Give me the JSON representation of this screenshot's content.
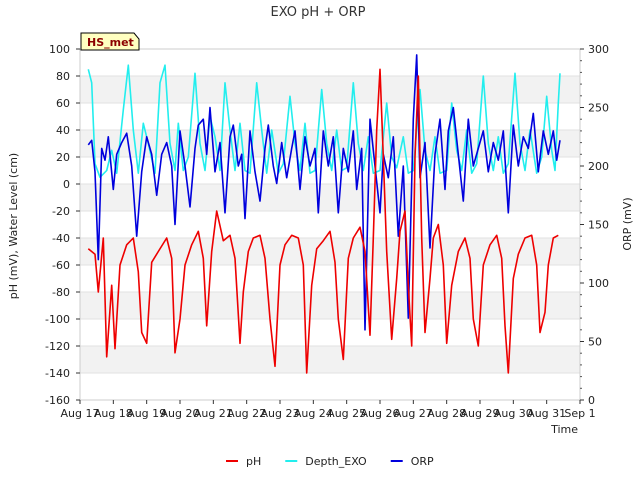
{
  "chart_data": {
    "type": "line",
    "title": "EXO pH + ORP",
    "station_label": "HS_met",
    "xlabel": "Time",
    "ylabel_left": "pH (mV), Water Level (cm)",
    "ylabel_right": "ORP (mV)",
    "x_ticks": [
      "Aug 17",
      "Aug 18",
      "Aug 19",
      "Aug 20",
      "Aug 21",
      "Aug 22",
      "Aug 23",
      "Aug 24",
      "Aug 25",
      "Aug 26",
      "Aug 27",
      "Aug 28",
      "Aug 29",
      "Aug 30",
      "Aug 31",
      "Sep 1"
    ],
    "xlim": [
      0,
      15
    ],
    "ylim_left": [
      -160,
      100
    ],
    "y_ticks_left": [
      "-160",
      "-140",
      "-120",
      "-100",
      "-80",
      "-60",
      "-40",
      "-20",
      "0",
      "20",
      "40",
      "60",
      "80",
      "100"
    ],
    "ylim_right": [
      0,
      300
    ],
    "y_ticks_right": [
      "0",
      "50",
      "100",
      "150",
      "200",
      "250",
      "300"
    ],
    "grid": "horizontal bands",
    "legend_position": "bottom",
    "series": [
      {
        "name": "pH",
        "axis": "left",
        "color": "#ee0000",
        "points": [
          [
            0.25,
            -48
          ],
          [
            0.45,
            -52
          ],
          [
            0.55,
            -80
          ],
          [
            0.7,
            -40
          ],
          [
            0.8,
            -128
          ],
          [
            0.95,
            -75
          ],
          [
            1.05,
            -122
          ],
          [
            1.2,
            -60
          ],
          [
            1.4,
            -45
          ],
          [
            1.6,
            -40
          ],
          [
            1.75,
            -65
          ],
          [
            1.85,
            -110
          ],
          [
            2.0,
            -118
          ],
          [
            2.15,
            -58
          ],
          [
            2.35,
            -50
          ],
          [
            2.6,
            -40
          ],
          [
            2.75,
            -55
          ],
          [
            2.85,
            -125
          ],
          [
            3.0,
            -100
          ],
          [
            3.15,
            -60
          ],
          [
            3.35,
            -45
          ],
          [
            3.55,
            -35
          ],
          [
            3.7,
            -55
          ],
          [
            3.8,
            -105
          ],
          [
            3.95,
            -50
          ],
          [
            4.1,
            -20
          ],
          [
            4.3,
            -42
          ],
          [
            4.5,
            -38
          ],
          [
            4.65,
            -55
          ],
          [
            4.8,
            -118
          ],
          [
            4.9,
            -80
          ],
          [
            5.05,
            -50
          ],
          [
            5.2,
            -40
          ],
          [
            5.4,
            -38
          ],
          [
            5.55,
            -55
          ],
          [
            5.7,
            -100
          ],
          [
            5.85,
            -135
          ],
          [
            6.0,
            -60
          ],
          [
            6.15,
            -45
          ],
          [
            6.35,
            -38
          ],
          [
            6.55,
            -40
          ],
          [
            6.7,
            -60
          ],
          [
            6.8,
            -140
          ],
          [
            6.95,
            -75
          ],
          [
            7.1,
            -48
          ],
          [
            7.3,
            -42
          ],
          [
            7.5,
            -35
          ],
          [
            7.65,
            -58
          ],
          [
            7.75,
            -100
          ],
          [
            7.9,
            -130
          ],
          [
            8.05,
            -55
          ],
          [
            8.2,
            -40
          ],
          [
            8.4,
            -32
          ],
          [
            8.55,
            -50
          ],
          [
            8.7,
            -112
          ],
          [
            8.8,
            -40
          ],
          [
            8.9,
            40
          ],
          [
            9.0,
            85
          ],
          [
            9.1,
            20
          ],
          [
            9.2,
            -50
          ],
          [
            9.35,
            -115
          ],
          [
            9.5,
            -70
          ],
          [
            9.6,
            -35
          ],
          [
            9.75,
            -20
          ],
          [
            9.85,
            -75
          ],
          [
            9.95,
            -120
          ],
          [
            10.05,
            20
          ],
          [
            10.15,
            80
          ],
          [
            10.25,
            -40
          ],
          [
            10.35,
            -110
          ],
          [
            10.5,
            -70
          ],
          [
            10.6,
            -40
          ],
          [
            10.75,
            -30
          ],
          [
            10.9,
            -60
          ],
          [
            11.0,
            -118
          ],
          [
            11.15,
            -75
          ],
          [
            11.35,
            -50
          ],
          [
            11.55,
            -40
          ],
          [
            11.7,
            -55
          ],
          [
            11.8,
            -100
          ],
          [
            11.95,
            -120
          ],
          [
            12.1,
            -60
          ],
          [
            12.3,
            -45
          ],
          [
            12.5,
            -38
          ],
          [
            12.65,
            -55
          ],
          [
            12.75,
            -105
          ],
          [
            12.85,
            -140
          ],
          [
            13.0,
            -70
          ],
          [
            13.15,
            -52
          ],
          [
            13.35,
            -40
          ],
          [
            13.55,
            -38
          ],
          [
            13.7,
            -60
          ],
          [
            13.8,
            -110
          ],
          [
            13.95,
            -95
          ],
          [
            14.05,
            -60
          ],
          [
            14.2,
            -40
          ],
          [
            14.35,
            -38
          ]
        ]
      },
      {
        "name": "Depth_EXO",
        "axis": "left",
        "color": "#22eeee",
        "points": [
          [
            0.25,
            85
          ],
          [
            0.35,
            75
          ],
          [
            0.45,
            15
          ],
          [
            0.6,
            5
          ],
          [
            0.8,
            10
          ],
          [
            0.95,
            25
          ],
          [
            1.1,
            8
          ],
          [
            1.3,
            55
          ],
          [
            1.45,
            88
          ],
          [
            1.6,
            40
          ],
          [
            1.75,
            8
          ],
          [
            1.9,
            45
          ],
          [
            2.05,
            30
          ],
          [
            2.25,
            8
          ],
          [
            2.4,
            75
          ],
          [
            2.55,
            88
          ],
          [
            2.7,
            30
          ],
          [
            2.85,
            10
          ],
          [
            2.95,
            45
          ],
          [
            3.1,
            10
          ],
          [
            3.25,
            20
          ],
          [
            3.45,
            82
          ],
          [
            3.6,
            30
          ],
          [
            3.75,
            10
          ],
          [
            3.9,
            50
          ],
          [
            4.05,
            35
          ],
          [
            4.2,
            10
          ],
          [
            4.35,
            75
          ],
          [
            4.5,
            40
          ],
          [
            4.65,
            10
          ],
          [
            4.8,
            45
          ],
          [
            4.95,
            10
          ],
          [
            5.1,
            8
          ],
          [
            5.3,
            75
          ],
          [
            5.45,
            40
          ],
          [
            5.6,
            8
          ],
          [
            5.75,
            40
          ],
          [
            5.95,
            8
          ],
          [
            6.1,
            15
          ],
          [
            6.3,
            65
          ],
          [
            6.45,
            30
          ],
          [
            6.6,
            10
          ],
          [
            6.75,
            45
          ],
          [
            6.9,
            8
          ],
          [
            7.05,
            10
          ],
          [
            7.25,
            70
          ],
          [
            7.4,
            30
          ],
          [
            7.55,
            10
          ],
          [
            7.7,
            40
          ],
          [
            7.85,
            10
          ],
          [
            8.0,
            12
          ],
          [
            8.2,
            75
          ],
          [
            8.35,
            30
          ],
          [
            8.5,
            10
          ],
          [
            8.65,
            35
          ],
          [
            8.8,
            8
          ],
          [
            9.0,
            10
          ],
          [
            9.2,
            60
          ],
          [
            9.35,
            20
          ],
          [
            9.5,
            12
          ],
          [
            9.7,
            35
          ],
          [
            9.85,
            8
          ],
          [
            10.0,
            10
          ],
          [
            10.2,
            70
          ],
          [
            10.35,
            25
          ],
          [
            10.5,
            10
          ],
          [
            10.65,
            35
          ],
          [
            10.8,
            8
          ],
          [
            11.0,
            10
          ],
          [
            11.15,
            60
          ],
          [
            11.3,
            25
          ],
          [
            11.45,
            10
          ],
          [
            11.6,
            40
          ],
          [
            11.75,
            8
          ],
          [
            11.9,
            15
          ],
          [
            12.1,
            80
          ],
          [
            12.25,
            30
          ],
          [
            12.4,
            10
          ],
          [
            12.55,
            35
          ],
          [
            12.7,
            8
          ],
          [
            12.85,
            15
          ],
          [
            13.05,
            82
          ],
          [
            13.2,
            30
          ],
          [
            13.35,
            10
          ],
          [
            13.5,
            40
          ],
          [
            13.7,
            8
          ],
          [
            13.85,
            20
          ],
          [
            14.0,
            65
          ],
          [
            14.15,
            25
          ],
          [
            14.25,
            10
          ],
          [
            14.35,
            60
          ],
          [
            14.4,
            82
          ]
        ]
      },
      {
        "name": "ORP",
        "axis": "right",
        "color": "#0000dd",
        "points": [
          [
            0.25,
            218
          ],
          [
            0.35,
            222
          ],
          [
            0.45,
            195
          ],
          [
            0.55,
            120
          ],
          [
            0.65,
            215
          ],
          [
            0.75,
            205
          ],
          [
            0.85,
            225
          ],
          [
            1.0,
            180
          ],
          [
            1.1,
            210
          ],
          [
            1.25,
            220
          ],
          [
            1.4,
            228
          ],
          [
            1.55,
            200
          ],
          [
            1.7,
            140
          ],
          [
            1.85,
            195
          ],
          [
            2.0,
            225
          ],
          [
            2.15,
            210
          ],
          [
            2.3,
            175
          ],
          [
            2.45,
            210
          ],
          [
            2.6,
            220
          ],
          [
            2.75,
            200
          ],
          [
            2.85,
            150
          ],
          [
            3.0,
            230
          ],
          [
            3.15,
            200
          ],
          [
            3.3,
            165
          ],
          [
            3.45,
            215
          ],
          [
            3.55,
            235
          ],
          [
            3.7,
            240
          ],
          [
            3.8,
            210
          ],
          [
            3.9,
            250
          ],
          [
            4.05,
            195
          ],
          [
            4.2,
            220
          ],
          [
            4.35,
            160
          ],
          [
            4.5,
            225
          ],
          [
            4.6,
            235
          ],
          [
            4.75,
            200
          ],
          [
            4.85,
            210
          ],
          [
            4.95,
            155
          ],
          [
            5.1,
            230
          ],
          [
            5.25,
            195
          ],
          [
            5.4,
            170
          ],
          [
            5.55,
            215
          ],
          [
            5.65,
            235
          ],
          [
            5.8,
            200
          ],
          [
            5.9,
            185
          ],
          [
            6.05,
            220
          ],
          [
            6.2,
            190
          ],
          [
            6.35,
            215
          ],
          [
            6.45,
            230
          ],
          [
            6.6,
            180
          ],
          [
            6.75,
            225
          ],
          [
            6.9,
            200
          ],
          [
            7.05,
            215
          ],
          [
            7.15,
            160
          ],
          [
            7.3,
            230
          ],
          [
            7.45,
            200
          ],
          [
            7.6,
            225
          ],
          [
            7.75,
            160
          ],
          [
            7.9,
            215
          ],
          [
            8.05,
            195
          ],
          [
            8.2,
            230
          ],
          [
            8.3,
            180
          ],
          [
            8.45,
            215
          ],
          [
            8.55,
            60
          ],
          [
            8.7,
            240
          ],
          [
            8.85,
            200
          ],
          [
            9.0,
            160
          ],
          [
            9.1,
            210
          ],
          [
            9.25,
            190
          ],
          [
            9.4,
            225
          ],
          [
            9.55,
            140
          ],
          [
            9.7,
            200
          ],
          [
            9.85,
            70
          ],
          [
            10.0,
            240
          ],
          [
            10.1,
            295
          ],
          [
            10.2,
            190
          ],
          [
            10.35,
            220
          ],
          [
            10.5,
            130
          ],
          [
            10.65,
            210
          ],
          [
            10.8,
            240
          ],
          [
            10.95,
            180
          ],
          [
            11.05,
            230
          ],
          [
            11.2,
            250
          ],
          [
            11.35,
            210
          ],
          [
            11.5,
            170
          ],
          [
            11.65,
            240
          ],
          [
            11.8,
            200
          ],
          [
            11.95,
            215
          ],
          [
            12.1,
            230
          ],
          [
            12.25,
            195
          ],
          [
            12.4,
            220
          ],
          [
            12.55,
            205
          ],
          [
            12.7,
            230
          ],
          [
            12.85,
            160
          ],
          [
            13.0,
            235
          ],
          [
            13.15,
            200
          ],
          [
            13.3,
            225
          ],
          [
            13.45,
            215
          ],
          [
            13.6,
            245
          ],
          [
            13.75,
            195
          ],
          [
            13.9,
            230
          ],
          [
            14.05,
            210
          ],
          [
            14.2,
            230
          ],
          [
            14.3,
            205
          ],
          [
            14.4,
            222
          ]
        ]
      }
    ]
  }
}
